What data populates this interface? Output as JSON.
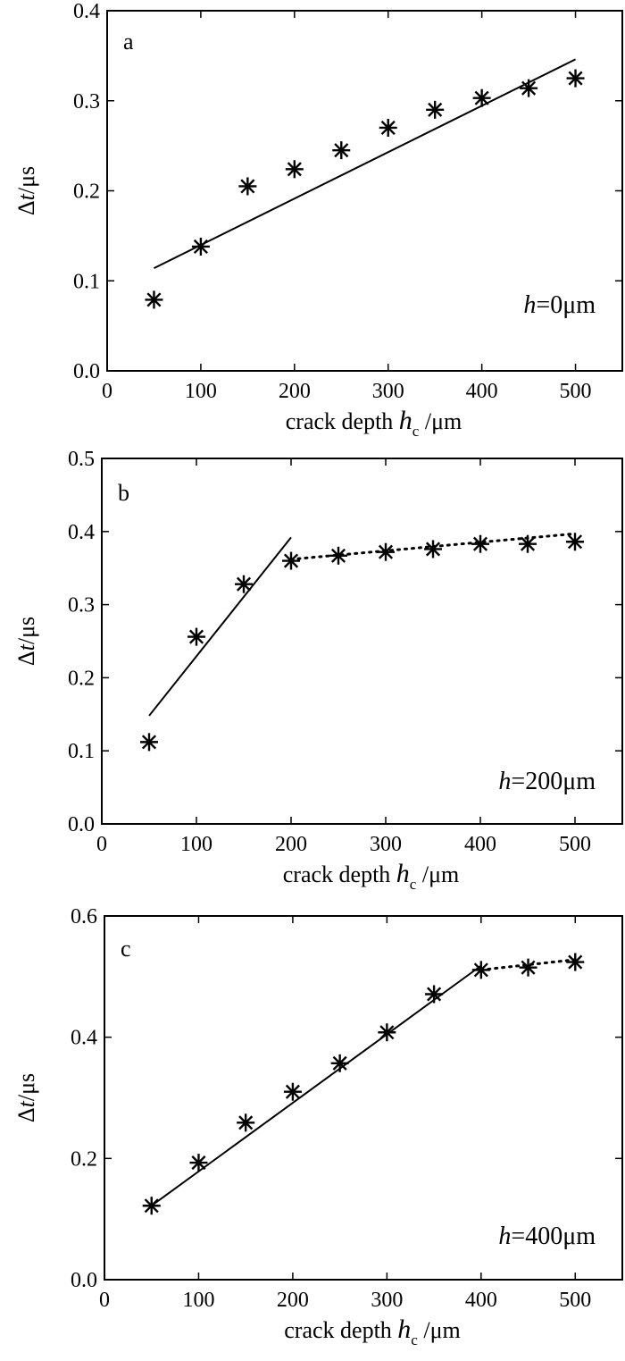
{
  "chart_data": [
    {
      "type": "scatter",
      "panel_label": "a",
      "annotation": {
        "italic": "h",
        "rest": "=0μm"
      },
      "xlabel": {
        "text": "crack depth ",
        "italic": "h",
        "sub": "c",
        "unit": "/μm"
      },
      "ylabel": {
        "delta": "Δ",
        "italic": "t",
        "unit": "/μs"
      },
      "xlim": [
        0,
        550
      ],
      "ylim": [
        0,
        0.4
      ],
      "xticks": [
        0,
        100,
        200,
        300,
        400,
        500
      ],
      "yticks": [
        0.0,
        0.1,
        0.2,
        0.3,
        0.4
      ],
      "ytick_labels": [
        "0.0",
        "0.1",
        "0.2",
        "0.3",
        "0.4"
      ],
      "grid": false,
      "series": [
        {
          "kind": "points",
          "marker": "asterisk",
          "x": [
            50,
            100,
            150,
            200,
            250,
            300,
            350,
            400,
            450,
            500
          ],
          "y": [
            0.079,
            0.138,
            0.205,
            0.224,
            0.245,
            0.27,
            0.29,
            0.303,
            0.314,
            0.325
          ]
        },
        {
          "kind": "fit-line",
          "style": "solid",
          "x": [
            50,
            500
          ],
          "y": [
            0.114,
            0.346
          ]
        }
      ]
    },
    {
      "type": "scatter",
      "panel_label": "b",
      "annotation": {
        "italic": "h",
        "rest": "=200μm"
      },
      "xlabel": {
        "text": "crack depth ",
        "italic": "h",
        "sub": "c",
        "unit": "/μm"
      },
      "ylabel": {
        "delta": "Δ",
        "italic": "t",
        "unit": "/μs"
      },
      "xlim": [
        0,
        550
      ],
      "ylim": [
        0,
        0.5
      ],
      "xticks": [
        0,
        100,
        200,
        300,
        400,
        500
      ],
      "yticks": [
        0.0,
        0.1,
        0.2,
        0.3,
        0.4,
        0.5
      ],
      "ytick_labels": [
        "0.0",
        "0.1",
        "0.2",
        "0.3",
        "0.4",
        "0.5"
      ],
      "grid": false,
      "series": [
        {
          "kind": "points",
          "marker": "asterisk",
          "x": [
            50,
            100,
            150,
            200,
            250,
            300,
            350,
            400,
            450,
            500
          ],
          "y": [
            0.112,
            0.256,
            0.328,
            0.36,
            0.367,
            0.372,
            0.376,
            0.383,
            0.383,
            0.386
          ]
        },
        {
          "kind": "fit-line",
          "style": "solid",
          "x": [
            50,
            200
          ],
          "y": [
            0.148,
            0.392
          ]
        },
        {
          "kind": "fit-line",
          "style": "dotted",
          "x": [
            200,
            500
          ],
          "y": [
            0.362,
            0.397
          ]
        }
      ]
    },
    {
      "type": "scatter",
      "panel_label": "c",
      "annotation": {
        "italic": "h",
        "rest": "=400μm"
      },
      "xlabel": {
        "text": "crack depth ",
        "italic": "h",
        "sub": "c",
        "unit": "/μm"
      },
      "ylabel": {
        "delta": "Δ",
        "italic": "t",
        "unit": "/μs"
      },
      "xlim": [
        0,
        550
      ],
      "ylim": [
        0,
        0.6
      ],
      "xticks": [
        0,
        100,
        200,
        300,
        400,
        500
      ],
      "yticks": [
        0.0,
        0.2,
        0.4,
        0.6
      ],
      "ytick_labels": [
        "0.0",
        "0.2",
        "0.4",
        "0.6"
      ],
      "grid": false,
      "series": [
        {
          "kind": "points",
          "marker": "asterisk",
          "x": [
            50,
            100,
            150,
            200,
            250,
            300,
            350,
            400,
            450,
            500
          ],
          "y": [
            0.122,
            0.193,
            0.259,
            0.31,
            0.357,
            0.408,
            0.471,
            0.511,
            0.515,
            0.524
          ]
        },
        {
          "kind": "fit-line",
          "style": "solid",
          "x": [
            50,
            400
          ],
          "y": [
            0.122,
            0.518
          ]
        },
        {
          "kind": "fit-line",
          "style": "dotted",
          "x": [
            400,
            500
          ],
          "y": [
            0.511,
            0.528
          ]
        }
      ]
    }
  ]
}
